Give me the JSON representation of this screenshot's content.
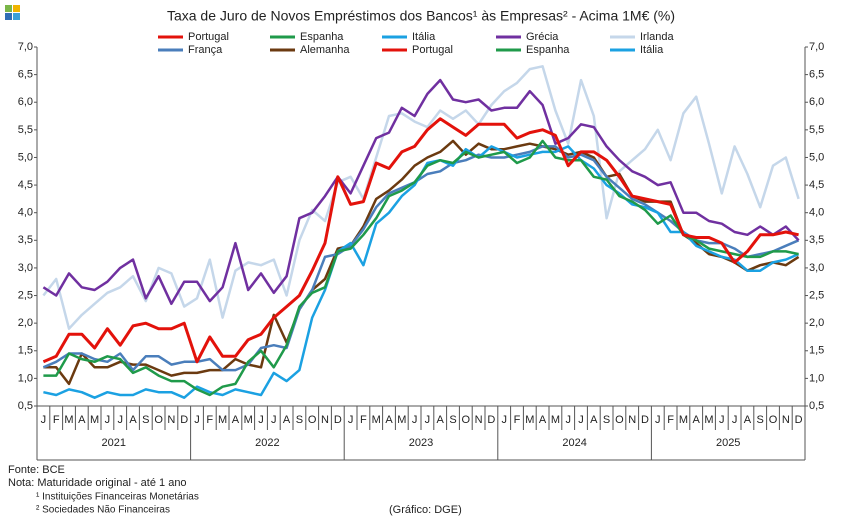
{
  "chart_data": {
    "type": "line",
    "title": "Taxa de Juro de Novos Empréstimos dos Bancos¹ às Empresas² - Acima 1M€ (%)",
    "categories": [
      "J",
      "F",
      "M",
      "A",
      "M",
      "J",
      "J",
      "A",
      "S",
      "O",
      "N",
      "D",
      "J",
      "F",
      "M",
      "A",
      "M",
      "J",
      "J",
      "A",
      "S",
      "O",
      "N",
      "D",
      "J",
      "F",
      "M",
      "A",
      "M",
      "J",
      "J",
      "A",
      "S",
      "O",
      "N",
      "D",
      "J",
      "F",
      "M",
      "A",
      "M",
      "J",
      "J",
      "A",
      "S",
      "O",
      "N",
      "D",
      "J",
      "F",
      "M",
      "A",
      "M",
      "J",
      "J",
      "A",
      "S",
      "O",
      "N",
      "D"
    ],
    "years": [
      "2021",
      "2022",
      "2023",
      "2024",
      "2025"
    ],
    "ylim": [
      0.5,
      7.0
    ],
    "yticks": [
      {
        "value": 0.5,
        "label": "0,5"
      },
      {
        "value": 1.0,
        "label": "1,0"
      },
      {
        "value": 1.5,
        "label": "1,5"
      },
      {
        "value": 2.0,
        "label": "2,0"
      },
      {
        "value": 2.5,
        "label": "2,5"
      },
      {
        "value": 3.0,
        "label": "3,0"
      },
      {
        "value": 3.5,
        "label": "3,5"
      },
      {
        "value": 4.0,
        "label": "4,0"
      },
      {
        "value": 4.5,
        "label": "4,5"
      },
      {
        "value": 5.0,
        "label": "5,0"
      },
      {
        "value": 5.5,
        "label": "5,5"
      },
      {
        "value": 6.0,
        "label": "6,0"
      },
      {
        "value": 6.5,
        "label": "6,5"
      },
      {
        "value": 7.0,
        "label": "7,0"
      }
    ],
    "grid": false,
    "series": [
      {
        "name": "Portugal",
        "color": "#e3120b",
        "values": [
          1.3,
          1.4,
          1.8,
          1.8,
          1.55,
          1.9,
          1.6,
          1.95,
          2.0,
          1.9,
          1.9,
          2.0,
          1.3,
          1.75,
          1.4,
          1.4,
          1.7,
          1.8,
          2.1,
          2.3,
          2.5,
          2.95,
          3.45,
          4.65,
          4.15,
          4.2,
          4.9,
          4.8,
          5.1,
          5.2,
          5.5,
          5.7,
          5.55,
          5.4,
          5.6,
          5.6,
          5.6,
          5.35,
          5.45,
          5.5,
          5.4,
          4.85,
          5.1,
          5.1,
          4.95,
          4.65,
          4.3,
          4.25,
          4.2,
          4.15,
          3.6,
          3.55,
          3.55,
          3.45,
          3.1,
          3.3,
          3.6,
          3.6,
          3.65,
          3.6
        ]
      },
      {
        "name": "Espanha",
        "color": "#1f9a4a",
        "values": [
          1.05,
          1.05,
          1.45,
          1.35,
          1.3,
          1.4,
          1.35,
          1.1,
          1.2,
          1.05,
          0.95,
          0.95,
          0.8,
          0.7,
          0.85,
          0.9,
          1.3,
          1.5,
          1.2,
          1.6,
          2.3,
          2.55,
          2.65,
          3.3,
          3.35,
          3.6,
          3.9,
          4.3,
          4.4,
          4.55,
          4.85,
          4.95,
          4.9,
          5.1,
          5.0,
          5.05,
          5.1,
          4.9,
          5.0,
          5.3,
          5.0,
          4.95,
          4.95,
          4.65,
          4.6,
          4.3,
          4.2,
          4.05,
          3.8,
          3.95,
          3.6,
          3.5,
          3.35,
          3.3,
          3.25,
          3.2,
          3.2,
          3.3,
          3.3,
          3.25
        ]
      },
      {
        "name": "Itália",
        "color": "#1ba1e2",
        "values": [
          0.75,
          0.7,
          0.8,
          0.75,
          0.65,
          0.75,
          0.7,
          0.7,
          0.8,
          0.75,
          0.75,
          0.65,
          0.85,
          0.75,
          0.7,
          0.8,
          0.75,
          0.7,
          1.1,
          0.95,
          1.15,
          2.1,
          2.6,
          3.3,
          3.45,
          3.05,
          3.8,
          4.0,
          4.3,
          4.5,
          4.9,
          4.95,
          4.85,
          5.15,
          5.0,
          5.2,
          5.1,
          5.0,
          5.05,
          5.1,
          5.1,
          5.2,
          4.95,
          4.8,
          4.5,
          4.35,
          4.15,
          4.1,
          4.0,
          3.65,
          3.65,
          3.4,
          3.3,
          3.2,
          3.15,
          2.95,
          2.95,
          3.1,
          3.15,
          3.25
        ]
      },
      {
        "name": "Grécia",
        "color": "#7030a0",
        "values": [
          2.65,
          2.5,
          2.9,
          2.65,
          2.6,
          2.75,
          3.0,
          3.15,
          2.45,
          2.85,
          2.35,
          2.75,
          2.75,
          2.4,
          2.65,
          3.45,
          2.6,
          2.9,
          2.55,
          2.85,
          3.9,
          4.0,
          4.3,
          4.65,
          4.35,
          4.85,
          5.35,
          5.45,
          5.9,
          5.75,
          6.15,
          6.4,
          6.05,
          6.0,
          6.05,
          5.85,
          5.9,
          5.9,
          6.2,
          5.95,
          5.25,
          5.35,
          5.6,
          5.55,
          5.2,
          4.95,
          4.75,
          4.65,
          4.5,
          4.55,
          4.0,
          4.0,
          3.85,
          3.8,
          3.65,
          3.6,
          3.75,
          3.6,
          3.75,
          3.5
        ]
      },
      {
        "name": "Irlanda",
        "color": "#c5d7ea",
        "values": [
          2.5,
          2.8,
          1.9,
          2.15,
          2.35,
          2.55,
          2.65,
          2.85,
          2.4,
          3.0,
          2.9,
          2.3,
          2.45,
          3.15,
          2.1,
          2.95,
          3.1,
          3.05,
          3.15,
          2.5,
          3.5,
          4.05,
          3.85,
          4.55,
          4.65,
          4.25,
          5.0,
          5.75,
          5.8,
          5.65,
          5.55,
          5.85,
          5.7,
          5.85,
          5.6,
          5.95,
          6.2,
          6.35,
          6.6,
          6.65,
          5.85,
          5.25,
          6.4,
          5.75,
          3.9,
          4.75,
          4.95,
          5.15,
          5.5,
          4.95,
          5.8,
          6.1,
          5.25,
          4.35,
          5.2,
          4.7,
          4.1,
          4.85,
          5.0,
          4.25
        ]
      },
      {
        "name": "França",
        "color": "#4a7ebb",
        "values": [
          1.2,
          1.3,
          1.45,
          1.45,
          1.35,
          1.3,
          1.45,
          1.15,
          1.4,
          1.4,
          1.25,
          1.3,
          1.3,
          1.35,
          1.15,
          1.15,
          1.25,
          1.55,
          1.6,
          1.55,
          2.25,
          2.6,
          3.2,
          3.25,
          3.4,
          3.7,
          4.1,
          4.35,
          4.45,
          4.55,
          4.7,
          4.75,
          4.9,
          4.95,
          5.05,
          5.0,
          5.0,
          5.05,
          5.1,
          5.2,
          5.2,
          5.0,
          5.05,
          4.95,
          4.65,
          4.45,
          4.25,
          4.15,
          4.0,
          3.85,
          3.65,
          3.5,
          3.45,
          3.45,
          3.35,
          3.2,
          3.25,
          3.3,
          3.4,
          3.5
        ]
      },
      {
        "name": "Alemanha",
        "color": "#6b3a10",
        "values": [
          1.2,
          1.2,
          0.9,
          1.45,
          1.2,
          1.2,
          1.3,
          1.25,
          1.25,
          1.15,
          1.05,
          1.1,
          1.1,
          1.15,
          1.15,
          1.35,
          1.25,
          1.2,
          2.15,
          1.65,
          2.25,
          2.6,
          2.8,
          3.35,
          3.4,
          3.75,
          4.25,
          4.4,
          4.6,
          4.85,
          5.0,
          5.1,
          5.3,
          5.05,
          5.25,
          5.15,
          5.15,
          5.2,
          5.25,
          5.2,
          5.15,
          5.05,
          5.1,
          5.0,
          4.65,
          4.7,
          4.3,
          4.2,
          4.2,
          4.2,
          3.6,
          3.45,
          3.25,
          3.2,
          3.1,
          2.95,
          3.05,
          3.1,
          3.05,
          3.2
        ]
      }
    ],
    "legend_repeat": [
      "Portugal",
      "Espanha",
      "Itália"
    ]
  },
  "footnotes": [
    "Fonte: BCE",
    "Nota: Maturidade original - até 1 ano",
    "¹ Instituições Financeiras Monetárias",
    "² Sociedades Não Financeiras"
  ],
  "credit": "(Gráfico: DGE)"
}
